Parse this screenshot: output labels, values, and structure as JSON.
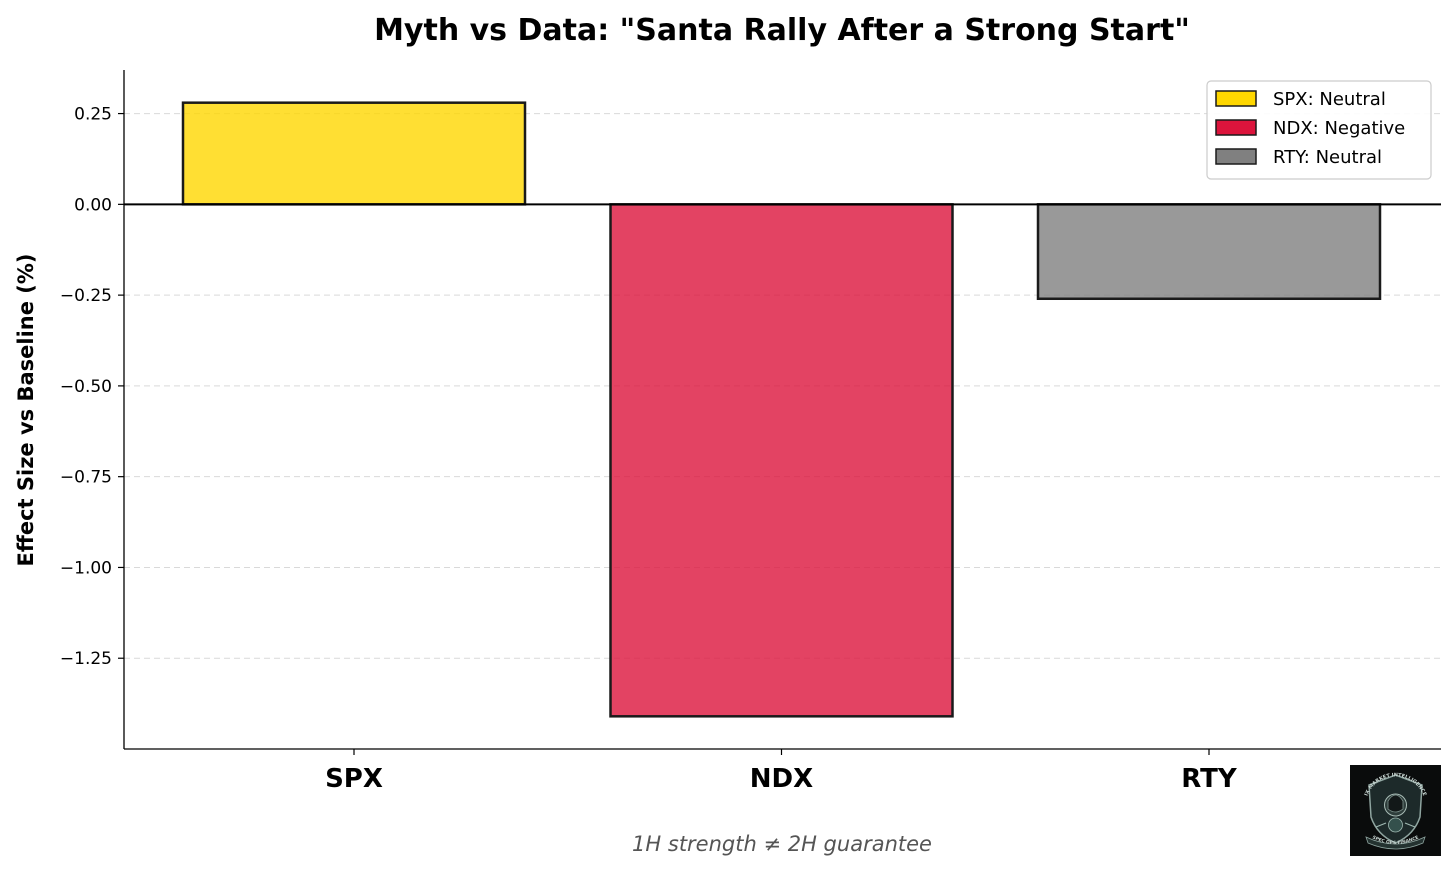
{
  "chart_data": {
    "type": "bar",
    "title": "Myth vs Data: \"Santa Rally After a Strong Start\"",
    "xlabel": "",
    "ylabel": "Effect Size vs Baseline (%)",
    "subtitle": "1H strength ≠ 2H guarantee",
    "categories": [
      "SPX",
      "NDX",
      "RTY"
    ],
    "values": [
      0.28,
      -1.41,
      -0.26
    ],
    "colors": [
      "#ffd700",
      "#dc143c",
      "#808080"
    ],
    "ylim": [
      -1.5,
      0.37
    ],
    "yticks": [
      0.25,
      0.0,
      -0.25,
      -0.5,
      -0.75,
      -1.0,
      -1.25
    ],
    "ytick_labels": [
      "0.25",
      "0.00",
      "−0.25",
      "−0.50",
      "−0.75",
      "−1.00",
      "−1.25"
    ],
    "grid": true,
    "legend_position": "top-right",
    "legend": [
      {
        "label": "SPX: Neutral",
        "color": "#ffd700"
      },
      {
        "label": "NDX: Negative",
        "color": "#dc143c"
      },
      {
        "label": "RTY: Neutral",
        "color": "#808080"
      }
    ]
  },
  "logo": {
    "top_text": "IX MARKET INTELLIGENCE",
    "bottom_text": "SPEC OPS FINANCE"
  }
}
